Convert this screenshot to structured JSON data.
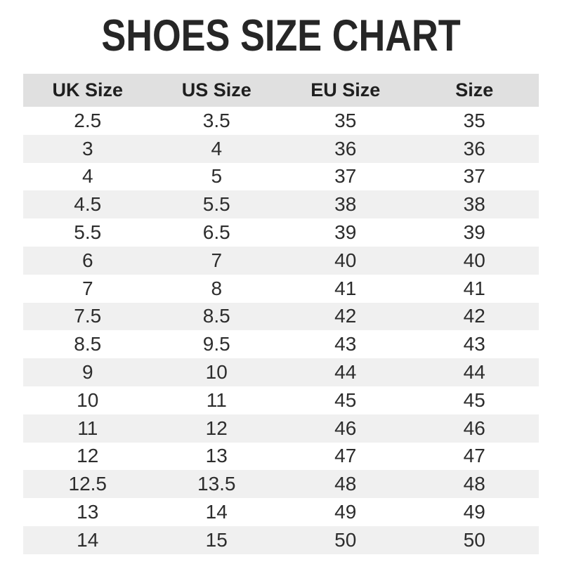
{
  "title": "SHOES SIZE CHART",
  "colors": {
    "header_bg": "#e0e0e0",
    "stripe_bg": "#f0f0f0",
    "row_bg": "#ffffff",
    "title_text": "#262626",
    "body_text": "#2d2d2d"
  },
  "chart_data": {
    "type": "table",
    "title": "SHOES SIZE CHART",
    "columns": [
      "UK Size",
      "US Size",
      "EU Size",
      "Size"
    ],
    "rows": [
      [
        "2.5",
        "3.5",
        "35",
        "35"
      ],
      [
        "3",
        "4",
        "36",
        "36"
      ],
      [
        "4",
        "5",
        "37",
        "37"
      ],
      [
        "4.5",
        "5.5",
        "38",
        "38"
      ],
      [
        "5.5",
        "6.5",
        "39",
        "39"
      ],
      [
        "6",
        "7",
        "40",
        "40"
      ],
      [
        "7",
        "8",
        "41",
        "41"
      ],
      [
        "7.5",
        "8.5",
        "42",
        "42"
      ],
      [
        "8.5",
        "9.5",
        "43",
        "43"
      ],
      [
        "9",
        "10",
        "44",
        "44"
      ],
      [
        "10",
        "11",
        "45",
        "45"
      ],
      [
        "11",
        "12",
        "46",
        "46"
      ],
      [
        "12",
        "13",
        "47",
        "47"
      ],
      [
        "12.5",
        "13.5",
        "48",
        "48"
      ],
      [
        "13",
        "14",
        "49",
        "49"
      ],
      [
        "14",
        "15",
        "50",
        "50"
      ]
    ],
    "layout": {
      "striped": true,
      "header_background": "#e0e0e0",
      "stripe_background": "#f0f0f0",
      "column_alignment": "center"
    }
  }
}
